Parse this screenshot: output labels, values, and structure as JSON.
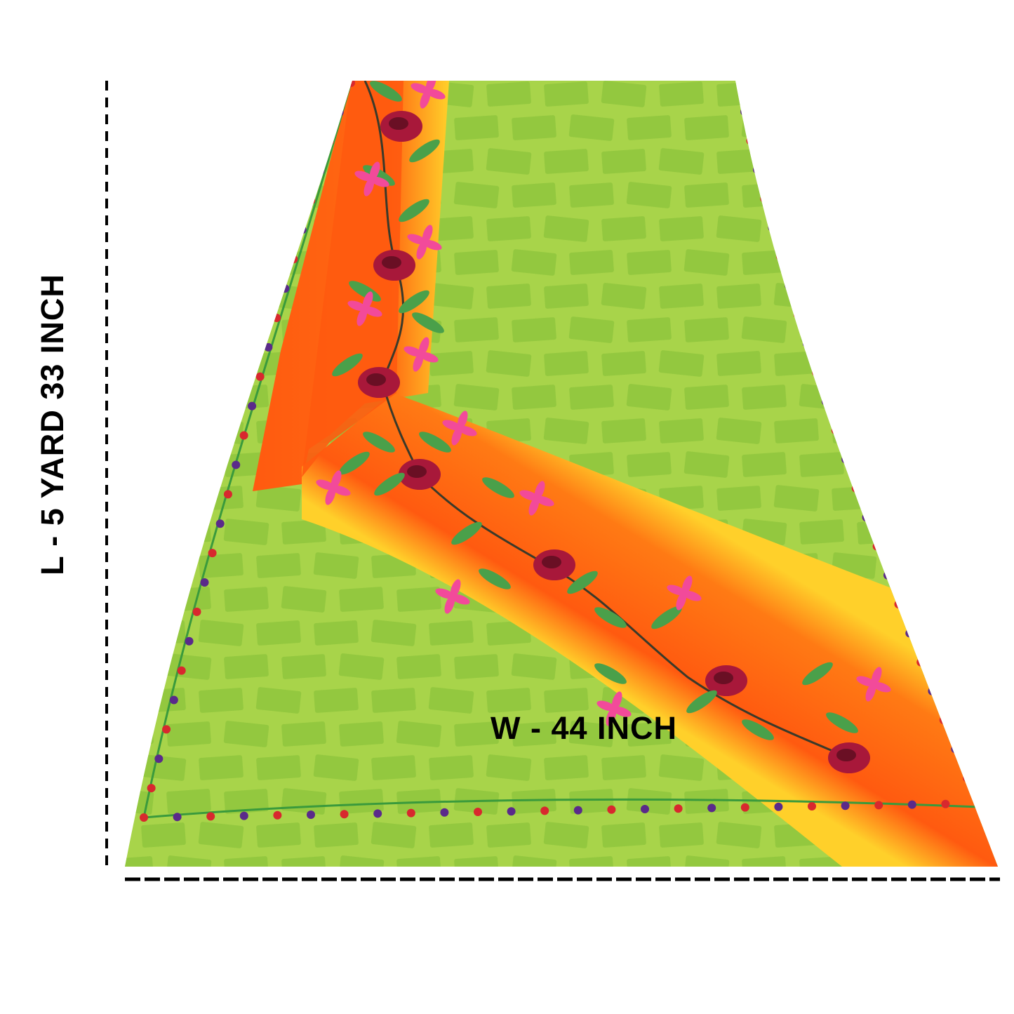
{
  "measurements": {
    "length_label": "L - 5 YARD 33 INCH",
    "width_label": "W - 44 INCH"
  },
  "fabric": {
    "base_color": "#a8d44a",
    "block_color": "#8cc43c",
    "band_color": "#ff5a10",
    "band_glow_color": "#ffd02a",
    "border_vine_color": "#3a9a3c",
    "border_flower_colors": [
      "#d8282e",
      "#5a2a8a"
    ],
    "rose_color": "#a8183a",
    "leaf_color": "#4aa04a",
    "petal_color": "#f24a9a"
  },
  "dimension_lines": {
    "line_color": "#000000",
    "style": "dashed"
  }
}
